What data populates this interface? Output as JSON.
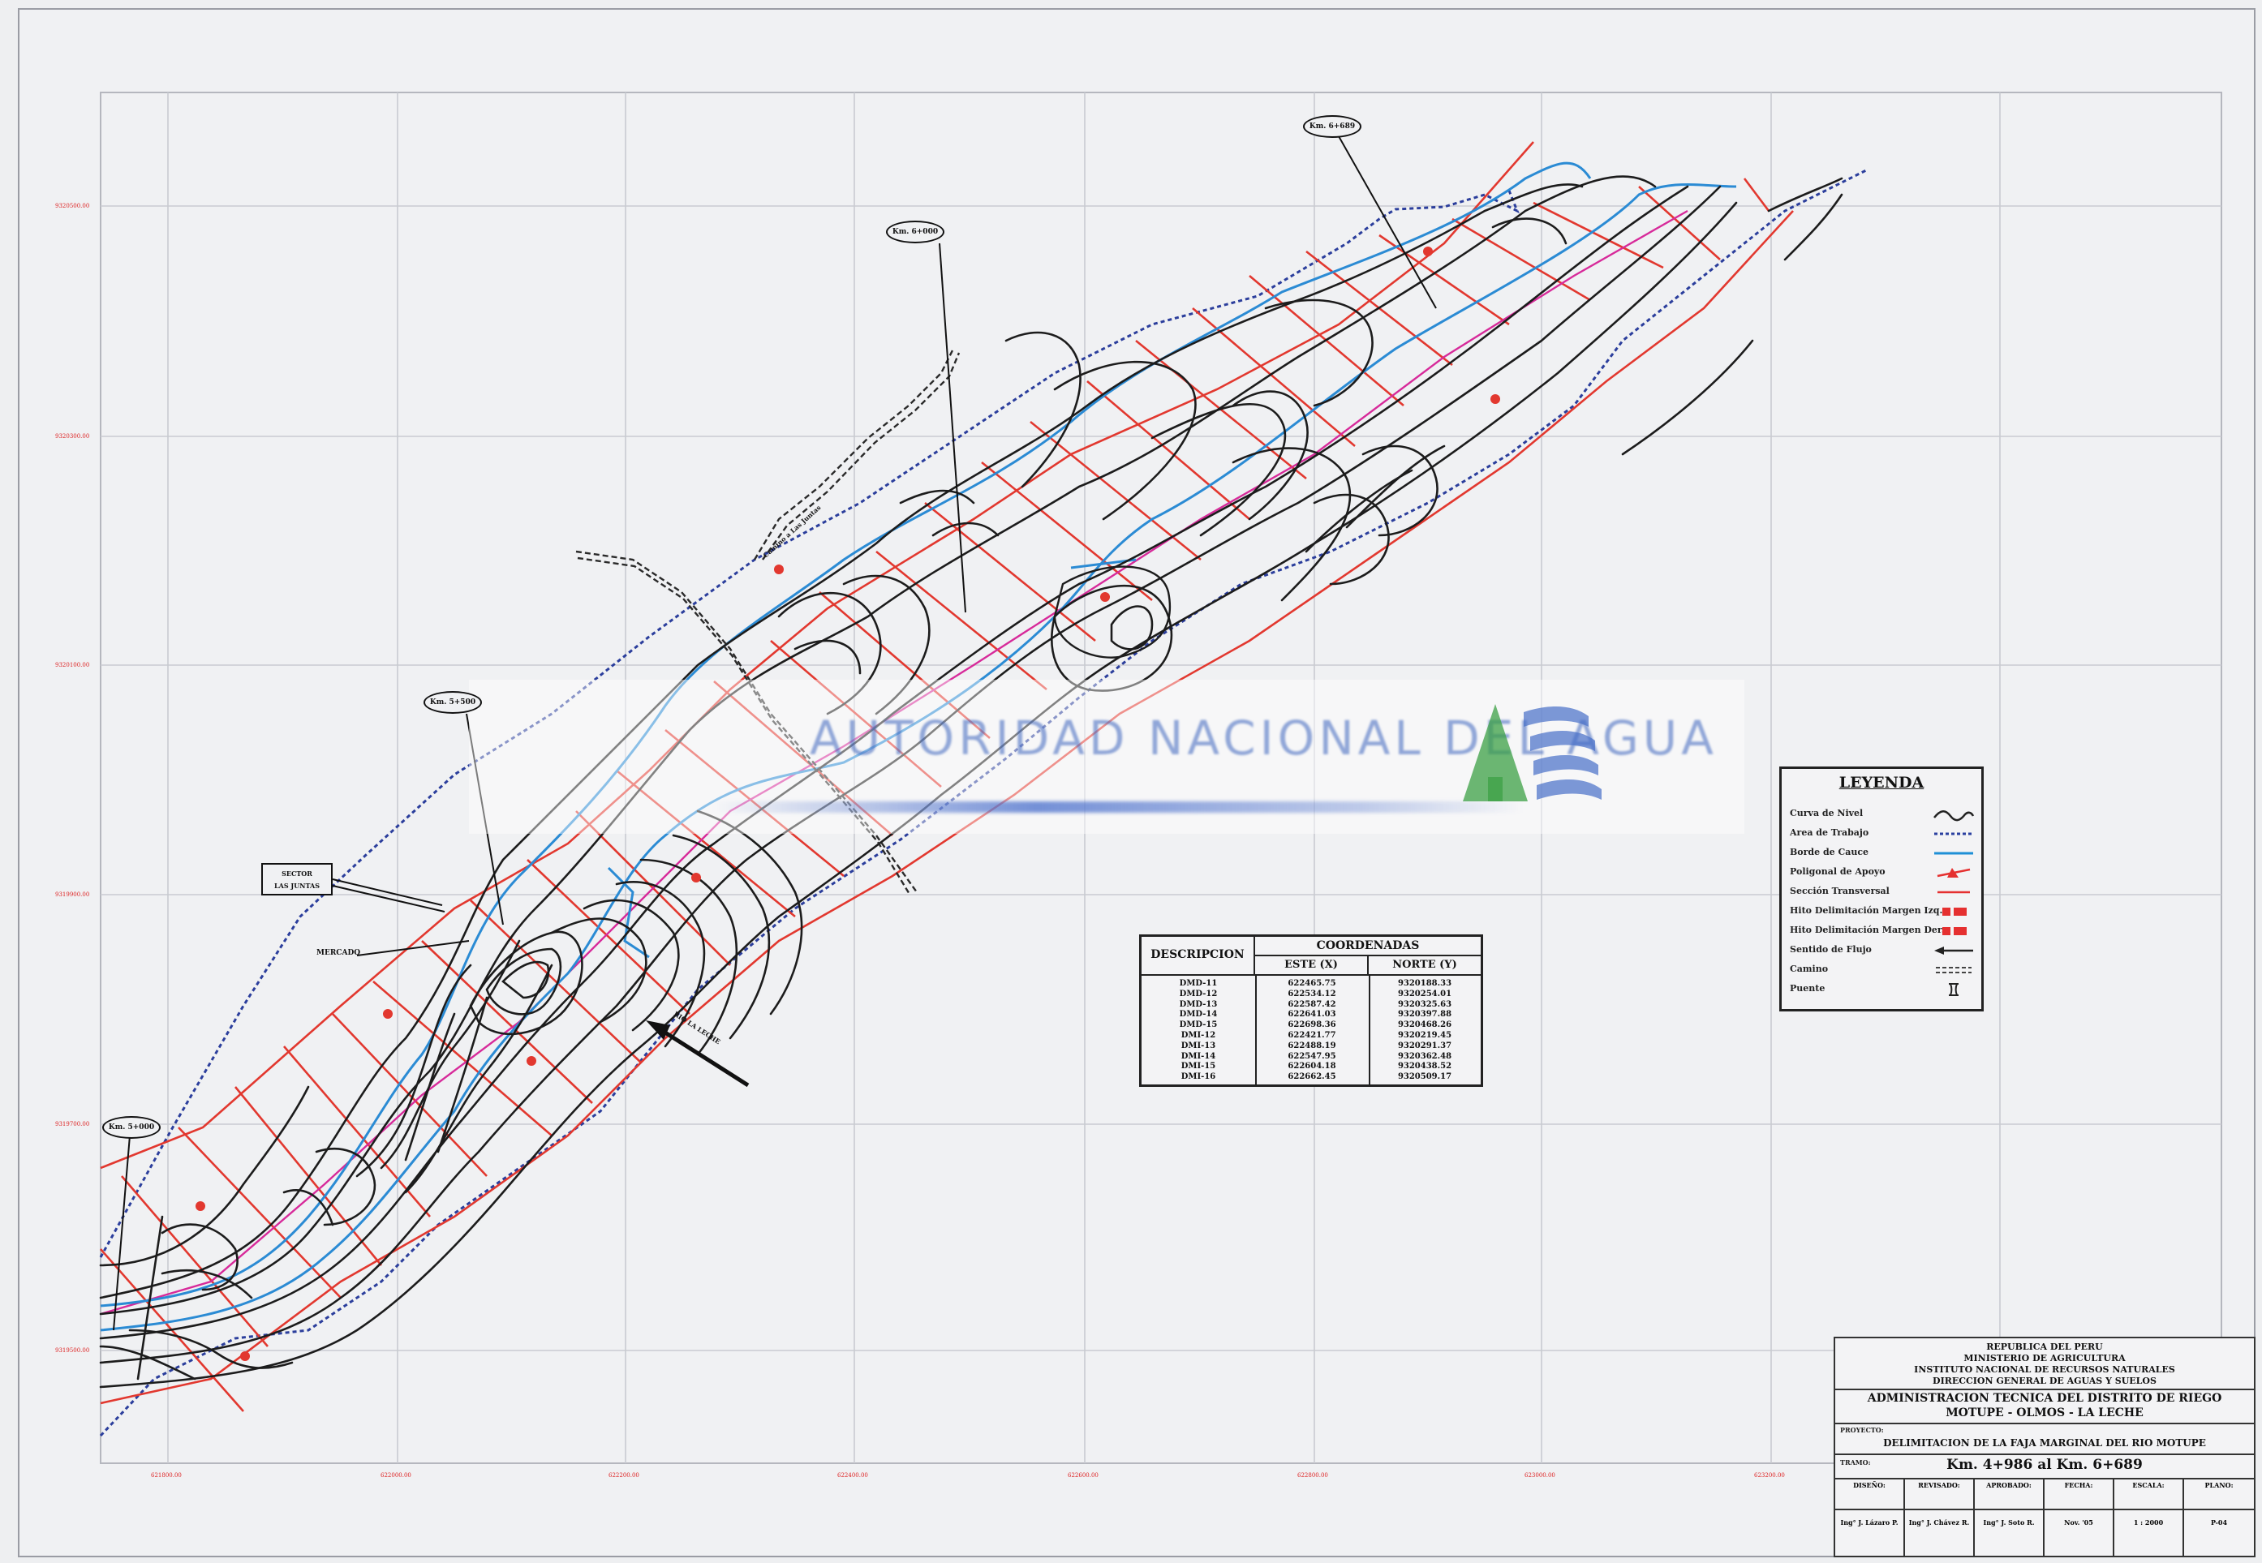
{
  "watermark": {
    "text": "AUTORIDAD NACIONAL DEL AGUA"
  },
  "labels": {
    "km_top_right": "Km. 6+689",
    "km_top_mid": "Km. 6+000",
    "km_mid_left": "Km. 5+500",
    "km_bottom_left": "Km. 5+000",
    "sector": [
      "SECTOR",
      "LAS JUNTAS"
    ],
    "road": "Camino a Las Juntas",
    "flow": "RIO LA LECHE",
    "mercado": "MERCADO"
  },
  "legend": {
    "title": "LEYENDA",
    "items": [
      {
        "label": "Curva de Nivel",
        "symbol": "contour-wave-icon",
        "color": "#222222"
      },
      {
        "label": "Area de Trabajo",
        "symbol": "dashed-line-icon",
        "color": "#2a3fa0"
      },
      {
        "label": "Borde de Cauce",
        "symbol": "solid-line-icon",
        "color": "#1e8fd6"
      },
      {
        "label": "Poligonal de Apoyo",
        "symbol": "polygon-marker-icon",
        "color": "#e53030"
      },
      {
        "label": "Sección Transversal",
        "symbol": "red-line-icon",
        "color": "#e53030"
      },
      {
        "label": "Hito Delimitación Margen Izq.",
        "symbol": "left-marker-icon",
        "color": "#e53030"
      },
      {
        "label": "Hito Delimitación Margen Der.",
        "symbol": "right-marker-icon",
        "color": "#e53030"
      },
      {
        "label": "Sentido de Flujo",
        "symbol": "arrow-left-icon",
        "color": "#222222"
      },
      {
        "label": "Camino",
        "symbol": "road-icon",
        "color": "#444444"
      },
      {
        "label": "Puente",
        "symbol": "bridge-icon",
        "color": "#222222"
      }
    ]
  },
  "coordinates": {
    "header_main": "COORDENADAS",
    "header_desc": "DESCRIPCION",
    "header_este": "ESTE (X)",
    "header_norte": "NORTE (Y)",
    "rows": [
      {
        "desc": "DMD-11",
        "este": "622465.75",
        "norte": "9320188.33"
      },
      {
        "desc": "DMD-12",
        "este": "622534.12",
        "norte": "9320254.01"
      },
      {
        "desc": "DMD-13",
        "este": "622587.42",
        "norte": "9320325.63"
      },
      {
        "desc": "DMD-14",
        "este": "622641.03",
        "norte": "9320397.88"
      },
      {
        "desc": "DMD-15",
        "este": "622698.36",
        "norte": "9320468.26"
      },
      {
        "desc": "DMI-12",
        "este": "622421.77",
        "norte": "9320219.45"
      },
      {
        "desc": "DMI-13",
        "este": "622488.19",
        "norte": "9320291.37"
      },
      {
        "desc": "DMI-14",
        "este": "622547.95",
        "norte": "9320362.48"
      },
      {
        "desc": "DMI-15",
        "este": "622604.18",
        "norte": "9320438.52"
      },
      {
        "desc": "DMI-16",
        "este": "622662.45",
        "norte": "9320509.17"
      }
    ]
  },
  "title_block": {
    "lines": [
      "REPUBLICA DEL PERU",
      "MINISTERIO DE AGRICULTURA",
      "INSTITUTO NACIONAL DE RECURSOS NATURALES",
      "DIRECCION GENERAL DE AGUAS Y SUELOS"
    ],
    "admin": [
      "ADMINISTRACION TECNICA DEL DISTRITO DE RIEGO",
      "MOTUPE - OLMOS - LA LECHE"
    ],
    "proyecto_label": "PROYECTO:",
    "proyecto": "DELIMITACION DE LA FAJA MARGINAL DEL RIO MOTUPE",
    "tramo_label": "TRAMO:",
    "tramo": "Km. 4+986 al Km. 6+689",
    "fields": [
      {
        "head": "DISEÑO:",
        "value": "Ing° J. Lázaro P."
      },
      {
        "head": "REVISADO:",
        "value": "Ing° J. Chávez R."
      },
      {
        "head": "APROBADO:",
        "value": "Ing° J. Soto R."
      },
      {
        "head": "FECHA:",
        "value": "Nov. '05"
      },
      {
        "head": "ESCALA:",
        "value": "1 : 2000"
      },
      {
        "head": "PLANO:",
        "value": "P-04"
      }
    ]
  },
  "grid": {
    "y_ticks": [
      "9320500.00",
      "9320300.00",
      "9320100.00",
      "9319900.00",
      "9319700.00",
      "9319500.00"
    ],
    "x_ticks": [
      "621800.00",
      "622000.00",
      "622200.00",
      "622400.00",
      "622600.00",
      "622800.00",
      "623000.00",
      "623200.00"
    ]
  }
}
